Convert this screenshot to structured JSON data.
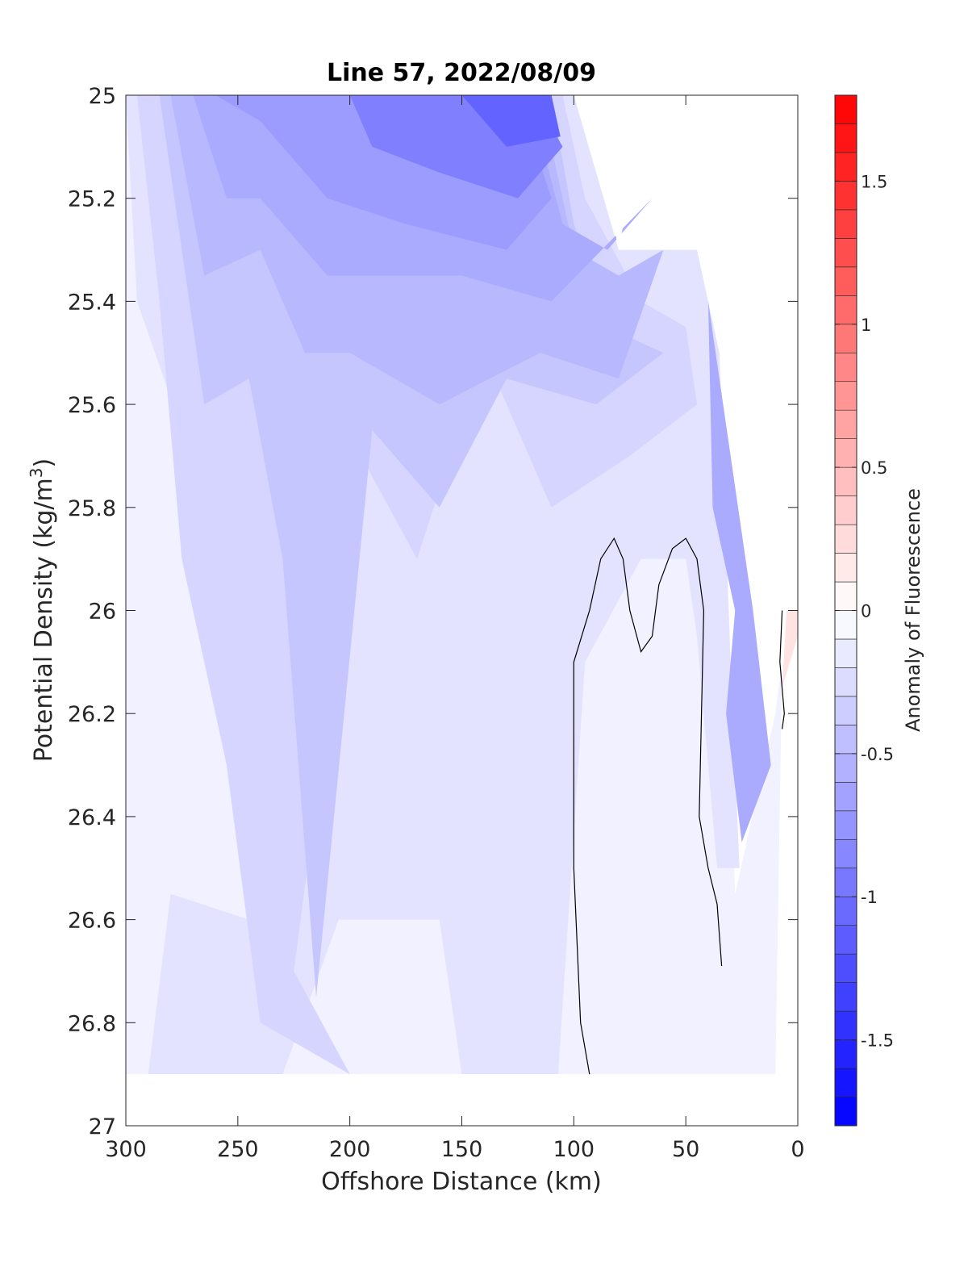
{
  "chart_data": {
    "type": "heatmap",
    "subtype": "filled contour section",
    "title": "Line 57, 2022/08/09",
    "xlabel": "Offshore Distance (km)",
    "ylabel_main": "Potential Density (kg/m",
    "ylabel_sup": "3",
    "ylabel_close": ")",
    "colorbar_label": "Anomaly of Fluorescence",
    "x_reversed": true,
    "y_reversed": true,
    "xlim": [
      0,
      300
    ],
    "ylim": [
      25,
      27
    ],
    "x_ticks": [
      300,
      250,
      200,
      150,
      100,
      50,
      0
    ],
    "x_tick_labels": [
      "300",
      "250",
      "200",
      "150",
      "100",
      "50",
      "0"
    ],
    "y_ticks": [
      25,
      25.2,
      25.4,
      25.6,
      25.8,
      26,
      26.2,
      26.4,
      26.6,
      26.8,
      27
    ],
    "y_tick_labels": [
      "25",
      "25.2",
      "25.4",
      "25.6",
      "25.8",
      "26",
      "26.2",
      "26.4",
      "26.6",
      "26.8",
      "27"
    ],
    "colorbar_range": [
      -1.8,
      1.8
    ],
    "colorbar_levels": 36,
    "colorbar_ticks": [
      -1.5,
      -1,
      -0.5,
      0,
      0.5,
      1,
      1.5
    ],
    "colorbar_tick_labels": [
      "-1.5",
      "-1",
      "-0.5",
      "0",
      "0.5",
      "1",
      "1.5"
    ],
    "colormap": {
      "negative": "#0000ff",
      "zero": "#ffffff",
      "positive": "#ff0000"
    },
    "grid": false,
    "contour_regions": [
      {
        "name": "outer-envelope",
        "value": -0.1,
        "points": [
          [
            300,
            25
          ],
          [
            105,
            25
          ],
          [
            93,
            25.2
          ],
          [
            70,
            25.4
          ],
          [
            40,
            25.9
          ],
          [
            32,
            26.1
          ],
          [
            28,
            26.55
          ],
          [
            10,
            26.2
          ],
          [
            7,
            26.1
          ],
          [
            10,
            26.9
          ],
          [
            300,
            26.9
          ]
        ]
      },
      {
        "name": "nearshore-red",
        "value": 0.2,
        "points": [
          [
            5,
            26.0
          ],
          [
            0,
            25.9
          ],
          [
            0,
            26.05
          ],
          [
            7,
            26.15
          ]
        ]
      },
      {
        "name": "level-m0.2",
        "value": -0.2,
        "points": [
          [
            300,
            25
          ],
          [
            100,
            25
          ],
          [
            80,
            25.3
          ],
          [
            45,
            25.3
          ],
          [
            35,
            25.5
          ],
          [
            30,
            26.1
          ],
          [
            26,
            26.5
          ],
          [
            36,
            26.5
          ],
          [
            45,
            26.05
          ],
          [
            50,
            25.9
          ],
          [
            70,
            25.9
          ],
          [
            95,
            26.1
          ],
          [
            107,
            26.9
          ],
          [
            150,
            26.9
          ],
          [
            160,
            26.6
          ],
          [
            205,
            26.6
          ],
          [
            230,
            26.9
          ],
          [
            290,
            26.9
          ],
          [
            280,
            26.55
          ],
          [
            245,
            26.6
          ],
          [
            235,
            26.3
          ],
          [
            260,
            26.2
          ],
          [
            255,
            25.9
          ],
          [
            295,
            25.4
          ]
        ]
      },
      {
        "name": "level-m0.3",
        "value": -0.3,
        "points": [
          [
            295,
            25
          ],
          [
            105,
            25
          ],
          [
            95,
            25.2
          ],
          [
            70,
            25.4
          ],
          [
            50,
            25.45
          ],
          [
            45,
            25.6
          ],
          [
            75,
            25.7
          ],
          [
            110,
            25.8
          ],
          [
            140,
            25.5
          ],
          [
            170,
            25.9
          ],
          [
            195,
            25.7
          ],
          [
            225,
            26.7
          ],
          [
            200,
            26.9
          ],
          [
            240,
            26.8
          ],
          [
            255,
            26.3
          ],
          [
            275,
            25.9
          ],
          [
            285,
            25.4
          ]
        ]
      },
      {
        "name": "level-m0.4",
        "value": -0.4,
        "points": [
          [
            285,
            25
          ],
          [
            110,
            25
          ],
          [
            100,
            25.25
          ],
          [
            85,
            25.45
          ],
          [
            60,
            25.5
          ],
          [
            90,
            25.6
          ],
          [
            130,
            25.55
          ],
          [
            160,
            25.8
          ],
          [
            190,
            25.65
          ],
          [
            215,
            26.75
          ],
          [
            230,
            25.9
          ],
          [
            245,
            25.55
          ],
          [
            265,
            25.6
          ],
          [
            275,
            25.3
          ]
        ]
      },
      {
        "name": "level-m0.5",
        "value": -0.5,
        "points": [
          [
            280,
            25
          ],
          [
            115,
            25
          ],
          [
            100,
            25.3
          ],
          [
            80,
            25.35
          ],
          [
            60,
            25.3
          ],
          [
            80,
            25.55
          ],
          [
            115,
            25.5
          ],
          [
            160,
            25.6
          ],
          [
            200,
            25.5
          ],
          [
            220,
            25.5
          ],
          [
            240,
            25.3
          ],
          [
            265,
            25.35
          ]
        ]
      },
      {
        "name": "level-m0.6",
        "value": -0.6,
        "points": [
          [
            270,
            25
          ],
          [
            120,
            25
          ],
          [
            105,
            25.25
          ],
          [
            85,
            25.3
          ],
          [
            65,
            25.2
          ],
          [
            110,
            25.4
          ],
          [
            150,
            25.35
          ],
          [
            180,
            25.35
          ],
          [
            210,
            25.35
          ],
          [
            240,
            25.2
          ],
          [
            255,
            25.2
          ]
        ]
      },
      {
        "name": "level-m0.7",
        "value": -0.7,
        "points": [
          [
            260,
            25
          ],
          [
            125,
            25
          ],
          [
            110,
            25.2
          ],
          [
            130,
            25.3
          ],
          [
            175,
            25.25
          ],
          [
            210,
            25.2
          ],
          [
            240,
            25.05
          ]
        ]
      },
      {
        "name": "level-m0.9",
        "value": -0.9,
        "points": [
          [
            200,
            25
          ],
          [
            118,
            25
          ],
          [
            105,
            25.1
          ],
          [
            125,
            25.2
          ],
          [
            160,
            25.15
          ],
          [
            190,
            25.1
          ]
        ]
      },
      {
        "name": "level-m1.1",
        "value": -1.1,
        "points": [
          [
            150,
            25
          ],
          [
            110,
            25
          ],
          [
            106,
            25.08
          ],
          [
            130,
            25.1
          ]
        ]
      },
      {
        "name": "nearshore-deficit-band",
        "value": -0.6,
        "points": [
          [
            40,
            25.4
          ],
          [
            20,
            26.0
          ],
          [
            12,
            26.3
          ],
          [
            25,
            26.45
          ],
          [
            32,
            26.2
          ],
          [
            28,
            26.0
          ],
          [
            38,
            25.8
          ]
        ]
      }
    ],
    "zero_contour_lines": [
      {
        "points": [
          [
            93,
            26.9
          ],
          [
            97,
            26.8
          ],
          [
            100,
            26.5
          ],
          [
            100,
            26.1
          ],
          [
            93,
            26.0
          ],
          [
            88,
            25.9
          ],
          [
            82,
            25.86
          ],
          [
            78,
            25.9
          ],
          [
            75,
            26.0
          ],
          [
            70,
            26.08
          ],
          [
            65,
            26.05
          ],
          [
            62,
            25.95
          ],
          [
            56,
            25.88
          ],
          [
            50,
            25.86
          ],
          [
            45,
            25.9
          ],
          [
            42,
            26.0
          ],
          [
            44,
            26.4
          ],
          [
            40,
            26.5
          ],
          [
            36,
            26.57
          ],
          [
            34,
            26.69
          ]
        ]
      },
      {
        "points": [
          [
            7,
            26.0
          ],
          [
            8,
            26.1
          ],
          [
            6,
            26.2
          ],
          [
            7,
            26.23
          ]
        ]
      }
    ],
    "nan_regions": [
      {
        "name": "surface-gap",
        "points": [
          [
            94,
            25
          ],
          [
            80,
            25.3
          ],
          [
            67,
            25
          ]
        ]
      },
      {
        "name": "nearshore-gap",
        "points": [
          [
            50,
            25
          ],
          [
            0,
            25
          ],
          [
            0,
            26.0
          ],
          [
            15,
            26.0
          ],
          [
            27,
            25.7
          ],
          [
            35,
            25.4
          ],
          [
            40,
            25.3
          ],
          [
            45,
            25.1
          ]
        ]
      },
      {
        "name": "bottom-gap",
        "points": [
          [
            300,
            26.9
          ],
          [
            0,
            26.9
          ],
          [
            0,
            27
          ],
          [
            300,
            27
          ]
        ]
      }
    ]
  }
}
